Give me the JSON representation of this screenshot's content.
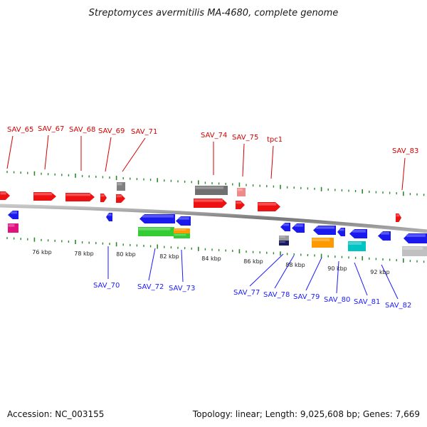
{
  "title": "Streptomyces avermitilis MA-4680, complete genome",
  "footer": {
    "accession": "Accession: NC_003155",
    "stats": "Topology: linear; Length: 9,025,608 bp; Genes: 7,669"
  },
  "colors": {
    "forward": "#ee1111",
    "reverse": "#1a1aee",
    "tick": "#2a8a2a",
    "backbone": "#8c8c8c",
    "label_top": "#d40000",
    "label_bottom": "#1a1aff"
  },
  "scale": {
    "labels": [
      "76 kbp",
      "78 kbp",
      "80 kbp",
      "82 kbp",
      "84 kbp",
      "86 kbp",
      "88 kbp",
      "90 kbp",
      "92 kbp"
    ]
  },
  "labels_top": [
    "SAV_65",
    "SAV_67",
    "SAV_68",
    "SAV_69",
    "SAV_71",
    "SAV_74",
    "SAV_75",
    "tpc1",
    "SAV_83"
  ],
  "labels_bottom": [
    "SAV_70",
    "SAV_72",
    "SAV_73",
    "SAV_77",
    "SAV_78",
    "SAV_79",
    "SAV_80",
    "SAV_81",
    "SAV_82"
  ]
}
